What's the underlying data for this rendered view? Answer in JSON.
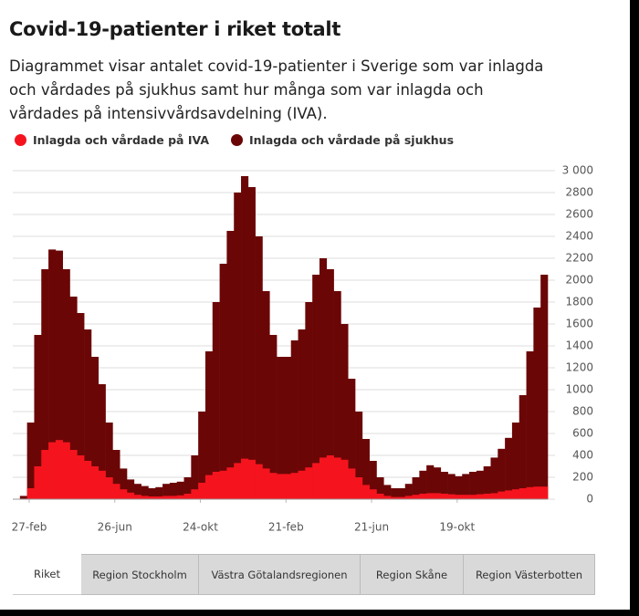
{
  "chart_data": {
    "type": "bar",
    "title": "Covid-19-patienter i riket totalt",
    "subtitle": "Diagrammet visar antalet covid-19-patienter i Sverige som var inlagda och vårdades på sjukhus samt hur många som var inlagda och vårdades på intensivvårdsavdelning (IVA).",
    "categories": [
      "27-feb",
      null,
      null,
      null,
      null,
      null,
      null,
      null,
      null,
      null,
      null,
      null,
      "26-jun",
      null,
      null,
      null,
      null,
      null,
      null,
      null,
      null,
      null,
      null,
      null,
      "24-okt",
      null,
      null,
      null,
      null,
      null,
      null,
      null,
      null,
      null,
      null,
      null,
      "21-feb",
      null,
      null,
      null,
      null,
      null,
      null,
      null,
      null,
      null,
      null,
      null,
      "21-jun",
      null,
      null,
      null,
      null,
      null,
      null,
      null,
      null,
      null,
      null,
      null,
      "19-okt",
      null,
      null,
      null,
      null,
      null,
      null,
      null,
      null,
      null,
      null,
      null,
      null,
      null,
      null
    ],
    "series": [
      {
        "name": "Inlagda och vårdade på IVA",
        "color": "#f5141e",
        "values": [
          0,
          5,
          100,
          300,
          450,
          520,
          540,
          520,
          450,
          400,
          350,
          300,
          260,
          200,
          140,
          90,
          60,
          40,
          30,
          25,
          25,
          30,
          30,
          35,
          50,
          90,
          150,
          220,
          250,
          260,
          290,
          330,
          370,
          360,
          320,
          280,
          240,
          230,
          230,
          240,
          260,
          290,
          330,
          380,
          400,
          380,
          360,
          280,
          200,
          130,
          90,
          50,
          30,
          20,
          20,
          30,
          40,
          50,
          55,
          55,
          50,
          45,
          40,
          40,
          40,
          45,
          50,
          55,
          70,
          80,
          90,
          100,
          110,
          115,
          115
        ]
      },
      {
        "name": "Inlagda och vårdade på sjukhus",
        "color": "#6b0606",
        "values": [
          0,
          30,
          700,
          1500,
          2100,
          2280,
          2270,
          2100,
          1850,
          1700,
          1550,
          1300,
          1050,
          700,
          450,
          280,
          180,
          140,
          120,
          100,
          110,
          140,
          150,
          160,
          200,
          400,
          800,
          1350,
          1800,
          2150,
          2450,
          2800,
          2950,
          2850,
          2400,
          1900,
          1500,
          1300,
          1300,
          1450,
          1550,
          1800,
          2050,
          2200,
          2100,
          1900,
          1600,
          1100,
          800,
          550,
          350,
          200,
          130,
          100,
          100,
          140,
          200,
          260,
          310,
          290,
          250,
          230,
          210,
          230,
          250,
          260,
          300,
          380,
          460,
          560,
          700,
          950,
          1350,
          1750,
          2050
        ]
      }
    ],
    "ylim": [
      0,
      3000
    ],
    "yticks": [
      0,
      200,
      400,
      600,
      800,
      1000,
      1200,
      1400,
      1600,
      1800,
      2000,
      2200,
      2400,
      2600,
      2800,
      {
        "value": 3000,
        "label": "3 000"
      }
    ],
    "grid": true
  },
  "tabs": [
    "Riket",
    "Region Stockholm",
    "Västra Götalandsregionen",
    "Region Skåne",
    "Region Västerbotten"
  ]
}
